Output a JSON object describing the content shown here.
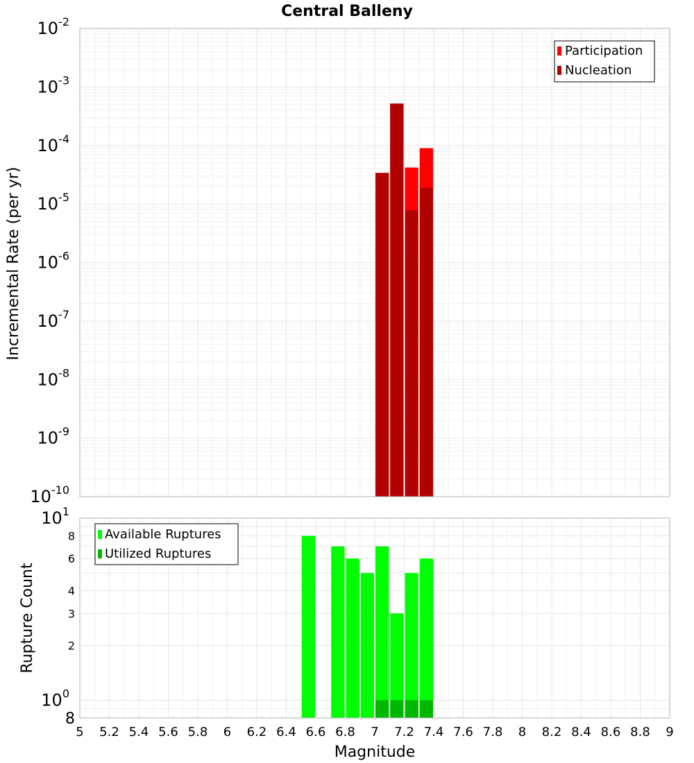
{
  "chart_data": [
    {
      "type": "bar",
      "title": "Central Balleny",
      "ylabel": "Incremental Rate (per yr)",
      "xlabel": "",
      "xlim": [
        5,
        9
      ],
      "ylim": [
        1e-10,
        0.01
      ],
      "yscale": "log",
      "ytick_exponents": [
        "-2",
        "-3",
        "-4",
        "-5",
        "-6",
        "-7",
        "-8",
        "-9",
        "-10"
      ],
      "ytick_base": "10",
      "bin_width": 0.1,
      "grid": true,
      "legend_position": "top-right",
      "series": [
        {
          "name": "Participation",
          "color": "#ff0000",
          "x": [
            7.05,
            7.15,
            7.25,
            7.35
          ],
          "values": [
            3.4e-05,
            0.00052,
            4.2e-05,
            9e-05
          ]
        },
        {
          "name": "Nucleation",
          "color": "#b00000",
          "x": [
            7.05,
            7.15,
            7.25,
            7.35
          ],
          "values": [
            3.4e-05,
            0.00052,
            7.8e-06,
            1.9e-05
          ]
        }
      ]
    },
    {
      "type": "bar",
      "title": "",
      "ylabel": "Rupture Count",
      "xlabel": "Magnitude",
      "xlim": [
        5,
        9
      ],
      "ylim": [
        0.8,
        10
      ],
      "yscale": "log",
      "xticks": [
        "5",
        "5.2",
        "5.4",
        "5.6",
        "5.8",
        "6",
        "6.2",
        "6.4",
        "6.6",
        "6.8",
        "7",
        "7.2",
        "7.4",
        "7.6",
        "7.8",
        "8",
        "8.2",
        "8.4",
        "8.6",
        "8.8",
        "9"
      ],
      "ytick_labels": {
        "top_base": "10",
        "top_exp": "1",
        "mid_base": "10",
        "mid_exp": "0",
        "bottom": "8",
        "minor": [
          "8",
          "6",
          "4",
          "3",
          "2"
        ]
      },
      "bin_width": 0.1,
      "grid": true,
      "legend_position": "top-left",
      "series": [
        {
          "name": "Available Ruptures",
          "color": "#00ff00",
          "x": [
            6.55,
            6.75,
            6.85,
            6.95,
            7.05,
            7.15,
            7.25,
            7.35
          ],
          "values": [
            8,
            7,
            6,
            5,
            7,
            3,
            5,
            6
          ]
        },
        {
          "name": "Utilized Ruptures",
          "color": "#00b800",
          "x": [
            7.05,
            7.15,
            7.25,
            7.35
          ],
          "values": [
            1,
            1,
            1,
            1
          ]
        }
      ]
    }
  ]
}
